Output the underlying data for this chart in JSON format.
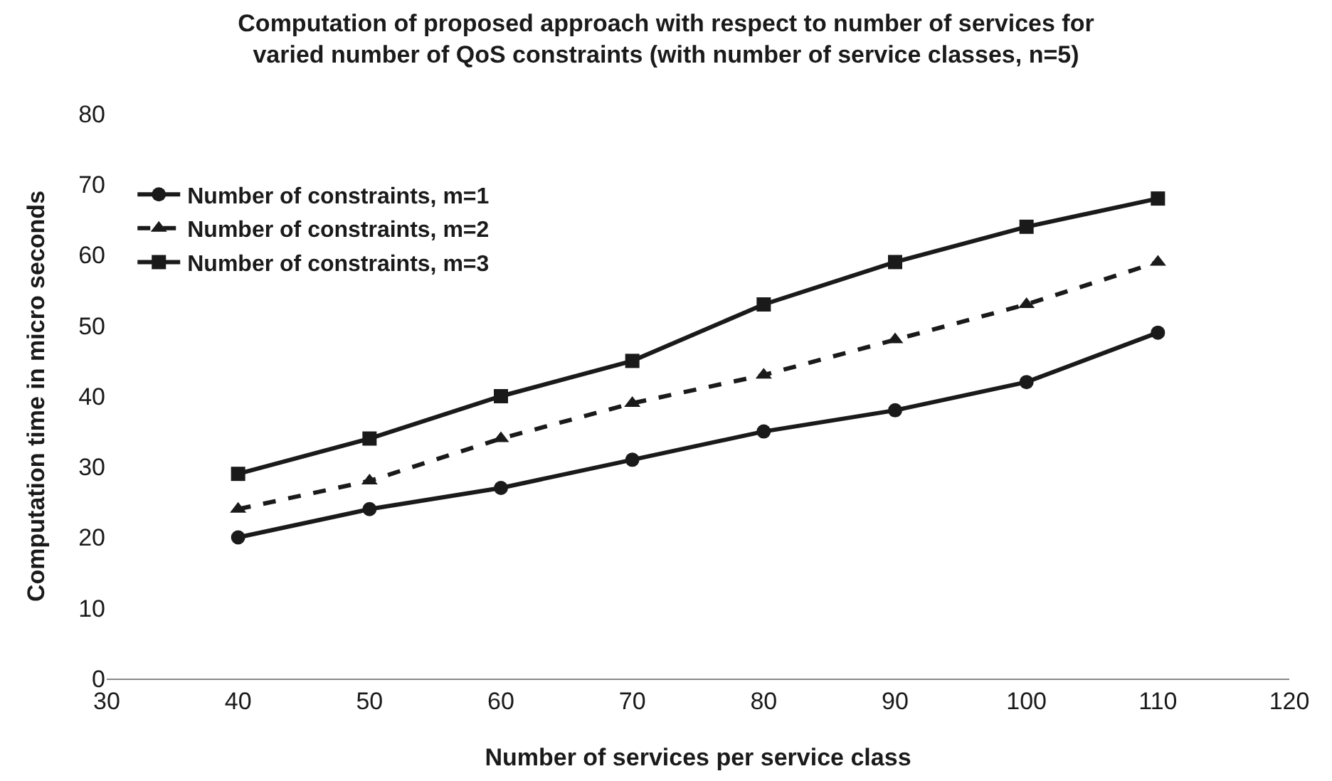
{
  "chart_data": {
    "type": "line",
    "title": "Computation of proposed approach with respect to number of services for varied number of QoS constraints (with number of service classes, n=5)",
    "xlabel": "Number of services per service class",
    "ylabel": "Computation time in micro seconds",
    "x": [
      40,
      50,
      60,
      70,
      80,
      90,
      100,
      110
    ],
    "series": [
      {
        "name": "Number of constraints, m=1",
        "color": "#1a1a1a",
        "marker": "circle",
        "line_style": "solid",
        "values": [
          20,
          24,
          27,
          31,
          35,
          38,
          42,
          49
        ]
      },
      {
        "name": "Number of constraints, m=2",
        "color": "#1a1a1a",
        "marker": "triangle",
        "line_style": "dashed",
        "values": [
          24,
          28,
          34,
          39,
          43,
          48,
          53,
          59
        ]
      },
      {
        "name": "Number of constraints, m=3",
        "color": "#1a1a1a",
        "marker": "square",
        "line_style": "solid",
        "values": [
          29,
          34,
          40,
          45,
          53,
          59,
          64,
          68
        ]
      }
    ],
    "xlim": [
      30,
      120
    ],
    "xticks": [
      30,
      40,
      50,
      60,
      70,
      80,
      90,
      100,
      110,
      120
    ],
    "ylim": [
      0,
      80
    ],
    "yticks": [
      0,
      10,
      20,
      30,
      40,
      50,
      60,
      70,
      80
    ],
    "grid": false,
    "legend": "top left"
  }
}
